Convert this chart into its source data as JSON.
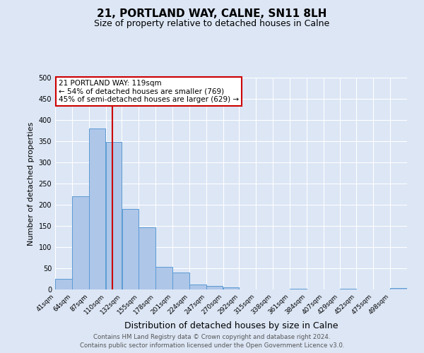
{
  "title": "21, PORTLAND WAY, CALNE, SN11 8LH",
  "subtitle": "Size of property relative to detached houses in Calne",
  "xlabel": "Distribution of detached houses by size in Calne",
  "ylabel": "Number of detached properties",
  "bar_labels": [
    "41sqm",
    "64sqm",
    "87sqm",
    "110sqm",
    "132sqm",
    "155sqm",
    "178sqm",
    "201sqm",
    "224sqm",
    "247sqm",
    "270sqm",
    "292sqm",
    "315sqm",
    "338sqm",
    "361sqm",
    "384sqm",
    "407sqm",
    "429sqm",
    "452sqm",
    "475sqm",
    "498sqm"
  ],
  "bar_values": [
    25,
    220,
    380,
    348,
    190,
    146,
    53,
    40,
    12,
    8,
    5,
    0,
    0,
    0,
    2,
    0,
    0,
    2,
    0,
    0,
    3
  ],
  "bar_color": "#aec6e8",
  "bar_edge_color": "#5b9bd5",
  "vline_x": 119,
  "vline_color": "#cc0000",
  "bin_edges_sqm": [
    41,
    64,
    87,
    110,
    132,
    155,
    178,
    201,
    224,
    247,
    270,
    292,
    315,
    338,
    361,
    384,
    407,
    429,
    452,
    475,
    498,
    521
  ],
  "ylim": [
    0,
    500
  ],
  "yticks": [
    0,
    50,
    100,
    150,
    200,
    250,
    300,
    350,
    400,
    450,
    500
  ],
  "annotation_line1": "21 PORTLAND WAY: 119sqm",
  "annotation_line2": "← 54% of detached houses are smaller (769)",
  "annotation_line3": "45% of semi-detached houses are larger (629) →",
  "annotation_box_color": "#ffffff",
  "annotation_box_edge_color": "#cc0000",
  "footer_line1": "Contains HM Land Registry data © Crown copyright and database right 2024.",
  "footer_line2": "Contains public sector information licensed under the Open Government Licence v3.0.",
  "background_color": "#dce6f5",
  "plot_bg_color": "#dce6f5"
}
